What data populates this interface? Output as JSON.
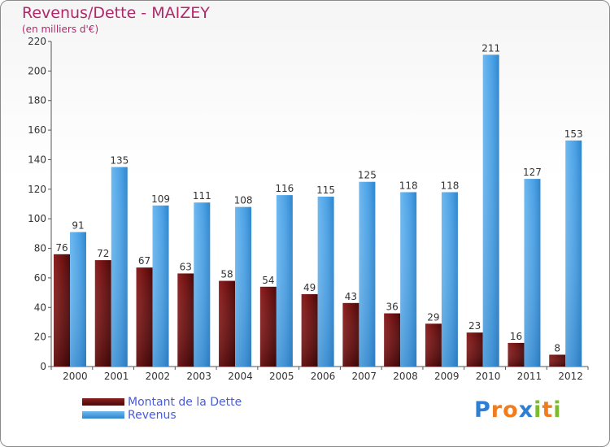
{
  "header": {
    "title": "Revenus/Dette - MAIZEY",
    "subtitle": "(en milliers d'€)"
  },
  "legend": {
    "items": [
      {
        "label": "Montant de la Dette",
        "color": "#6e1010"
      },
      {
        "label": "Revenus",
        "color": "#4aa0e4"
      }
    ]
  },
  "logo": {
    "letters": [
      {
        "ch": "P",
        "color": "#2e7fd1"
      },
      {
        "ch": "r",
        "color": "#f07c1e"
      },
      {
        "ch": "o",
        "color": "#f07c1e"
      },
      {
        "ch": "x",
        "color": "#2e7fd1"
      },
      {
        "ch": "i",
        "color": "#7cba2e"
      },
      {
        "ch": "t",
        "color": "#f07c1e"
      },
      {
        "ch": "i",
        "color": "#7cba2e"
      }
    ]
  },
  "chart_data": {
    "type": "bar",
    "categories": [
      "2000",
      "2001",
      "2002",
      "2003",
      "2004",
      "2005",
      "2006",
      "2007",
      "2008",
      "2009",
      "2010",
      "2011",
      "2012"
    ],
    "series": [
      {
        "name": "Montant de la Dette",
        "color": "#6e1010",
        "values": [
          76,
          72,
          67,
          63,
          58,
          54,
          49,
          43,
          36,
          29,
          23,
          16,
          8
        ]
      },
      {
        "name": "Revenus",
        "color": "#4aa0e4",
        "values": [
          91,
          135,
          109,
          111,
          108,
          116,
          115,
          125,
          118,
          118,
          211,
          127,
          153
        ]
      }
    ],
    "ylim": [
      0,
      220
    ],
    "yticks": [
      0,
      20,
      40,
      60,
      80,
      100,
      120,
      140,
      160,
      180,
      200,
      220
    ],
    "grid": false,
    "legend_position": "bottom-left"
  }
}
